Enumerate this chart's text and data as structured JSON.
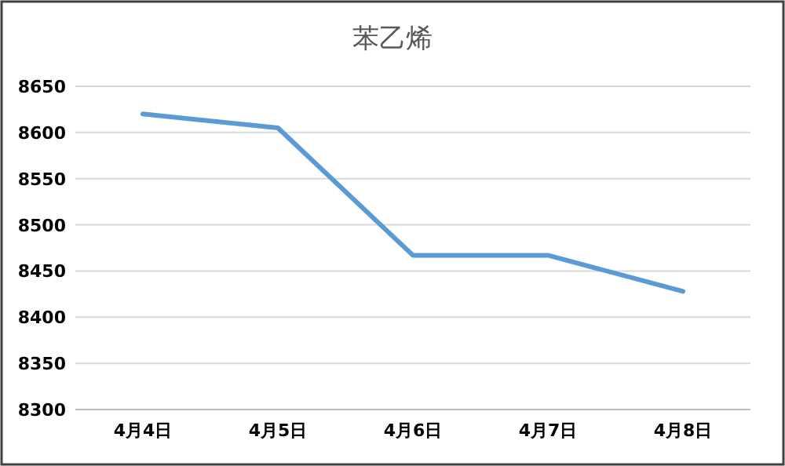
{
  "chart_data": {
    "type": "line",
    "title": "苯乙烯",
    "categories": [
      "4月4日",
      "4月5日",
      "4月6日",
      "4月7日",
      "4月8日"
    ],
    "series": [
      {
        "color": "#5b9bd5",
        "values": [
          8620,
          8605,
          8467,
          8467,
          8428
        ]
      }
    ],
    "ylim": [
      8300,
      8650
    ],
    "yticks": [
      8300,
      8350,
      8400,
      8450,
      8500,
      8550,
      8600,
      8650
    ],
    "grid": "y",
    "marker": "none",
    "line_style": "solid"
  }
}
